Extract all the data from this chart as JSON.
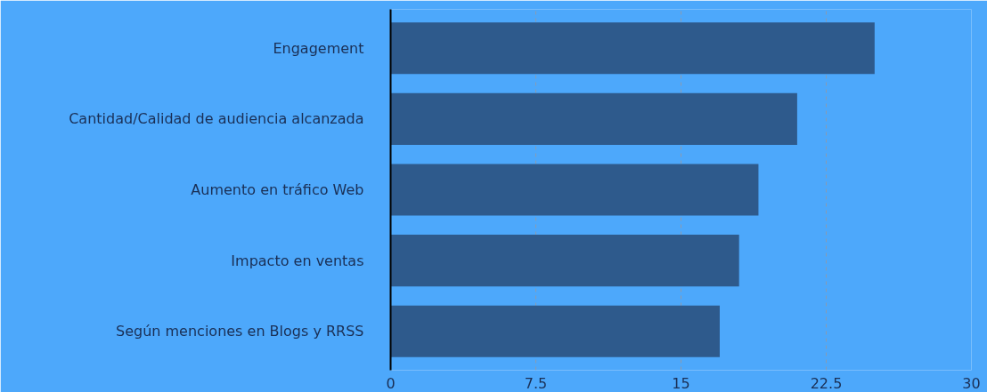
{
  "chart_data": {
    "type": "bar",
    "orientation": "horizontal",
    "categories": [
      "Engagement",
      "Cantidad/Calidad de audiencia alcanzada",
      "Aumento en tráfico Web",
      "Impacto en ventas",
      "Según menciones en Blogs y RRSS"
    ],
    "values": [
      25,
      21,
      19,
      18,
      17
    ],
    "color": "#2e5a8c",
    "xlim": [
      0,
      30
    ],
    "xticks": [
      0,
      7.5,
      15,
      22.5,
      30
    ],
    "grid": "x",
    "line_style": "dashed"
  }
}
